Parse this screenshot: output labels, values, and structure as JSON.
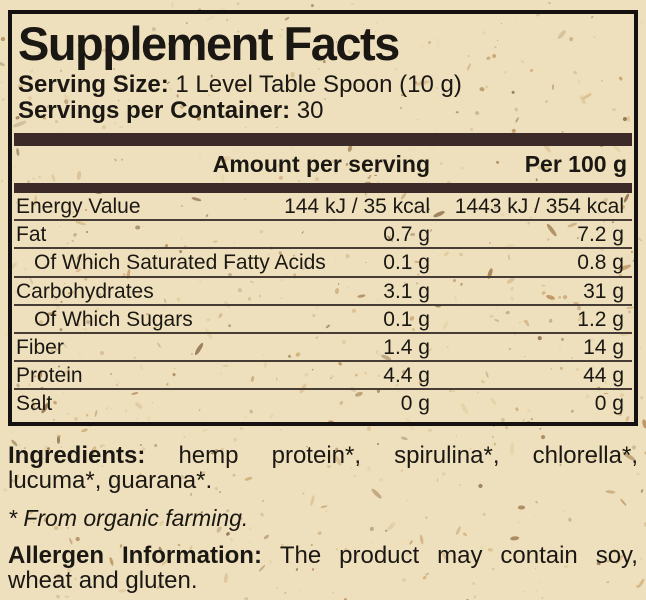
{
  "colors": {
    "paper": "#eee0bc",
    "bar": "#3b2a28",
    "text": "#1b1713",
    "border": "#151110",
    "row_line": "#473c36",
    "speckles": [
      "#dabd8d",
      "#c9a268",
      "#b28049",
      "#92683a",
      "#e2cf9f",
      "#7c5c38",
      "#caa87a"
    ]
  },
  "title": "Supplement Facts",
  "serving": {
    "size_label": "Serving Size:",
    "size_value": "1 Level Table Spoon (10 g)",
    "per_container_label": "Servings per Container:",
    "per_container_value": "30"
  },
  "table": {
    "col_serving": "Amount per serving",
    "col_per100": "Per 100 g",
    "rows": [
      {
        "label": "Energy Value",
        "serving": "144 kJ / 35 kcal",
        "per100": "1443 kJ / 354 kcal",
        "indent": false
      },
      {
        "label": "Fat",
        "serving": "0.7 g",
        "per100": "7.2 g",
        "indent": false
      },
      {
        "label": "Of Which Saturated Fatty Acids",
        "serving": "0.1 g",
        "per100": "0.8 g",
        "indent": true
      },
      {
        "label": "Carbohydrates",
        "serving": "3.1 g",
        "per100": "31 g",
        "indent": false
      },
      {
        "label": "Of Which Sugars",
        "serving": "0.1 g",
        "per100": "1.2 g",
        "indent": true
      },
      {
        "label": "Fiber",
        "serving": "1.4 g",
        "per100": "14 g",
        "indent": false
      },
      {
        "label": "Protein",
        "serving": "4.4 g",
        "per100": "44 g",
        "indent": false
      },
      {
        "label": "Salt",
        "serving": "0 g",
        "per100": "0 g",
        "indent": false
      }
    ]
  },
  "ingredients": {
    "line1": "Ingredients: hemp protein*, spirulina*, chlorella*,",
    "line2": "lucuma*, guarana*."
  },
  "footnote": "* From organic farming.",
  "allergen": {
    "line1": "Allergen Information: The product may contain soy,",
    "line2": "wheat and gluten."
  }
}
